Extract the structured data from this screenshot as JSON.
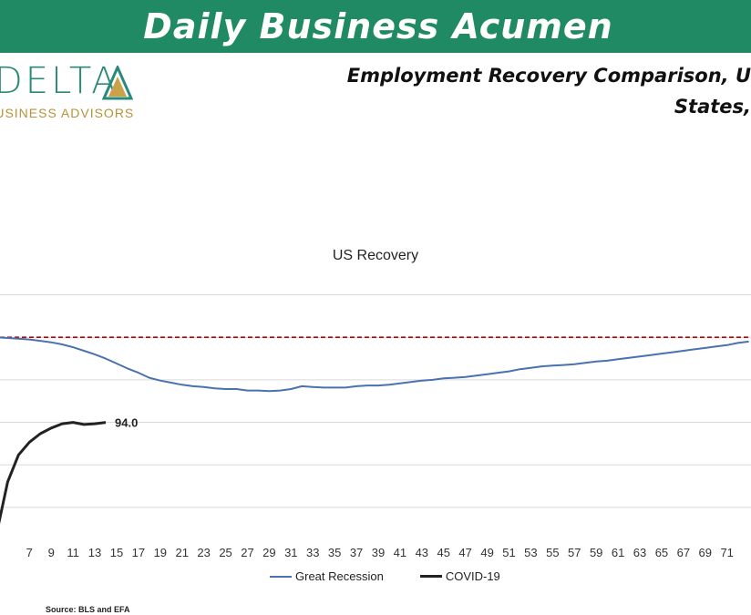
{
  "banner": {
    "title": "Daily Business Acumen"
  },
  "logo": {
    "word": "DELTA",
    "subtitle": "BUSINESS ADVISORS"
  },
  "headline": {
    "line1": "Employment Recovery Comparison, U",
    "line2": "States,"
  },
  "source": "Source: BLS and EFA",
  "colors": {
    "banner": "#1f8a63",
    "great_recession": "#4a72b0",
    "covid": "#222222",
    "reference": "#c00000"
  },
  "chart_data": {
    "type": "line",
    "title": "US Recovery",
    "x_ticks": [
      7,
      9,
      11,
      13,
      15,
      17,
      19,
      21,
      23,
      25,
      27,
      29,
      31,
      33,
      35,
      37,
      39,
      41,
      43,
      45,
      47,
      49,
      51,
      53,
      55,
      57,
      59,
      61,
      63,
      65,
      67,
      69,
      71
    ],
    "xlim": [
      4.3,
      73.2
    ],
    "ylim": [
      86,
      104
    ],
    "y_gridlines": [
      88,
      91,
      94,
      97,
      100,
      103
    ],
    "reference_line": {
      "y": 100,
      "style": "dashed"
    },
    "series": [
      {
        "name": "Great Recession",
        "x": [
          4,
          5,
          6,
          7,
          8,
          9,
          10,
          11,
          12,
          13,
          14,
          15,
          16,
          17,
          18,
          19,
          20,
          21,
          22,
          23,
          24,
          25,
          26,
          27,
          28,
          29,
          30,
          31,
          32,
          33,
          34,
          35,
          36,
          37,
          38,
          39,
          40,
          41,
          42,
          43,
          44,
          45,
          46,
          47,
          48,
          49,
          50,
          51,
          52,
          53,
          54,
          55,
          56,
          57,
          58,
          59,
          60,
          61,
          62,
          63,
          64,
          65,
          66,
          67,
          68,
          69,
          70,
          71,
          72,
          73
        ],
        "values": [
          100.0,
          99.95,
          99.9,
          99.85,
          99.75,
          99.65,
          99.5,
          99.3,
          99.05,
          98.8,
          98.5,
          98.15,
          97.8,
          97.5,
          97.15,
          96.95,
          96.8,
          96.65,
          96.55,
          96.5,
          96.4,
          96.35,
          96.35,
          96.25,
          96.25,
          96.2,
          96.25,
          96.35,
          96.55,
          96.5,
          96.45,
          96.45,
          96.45,
          96.55,
          96.6,
          96.6,
          96.65,
          96.75,
          96.85,
          96.95,
          97.0,
          97.1,
          97.15,
          97.2,
          97.3,
          97.4,
          97.5,
          97.6,
          97.75,
          97.85,
          97.95,
          98.0,
          98.05,
          98.1,
          98.2,
          98.3,
          98.35,
          98.45,
          98.55,
          98.65,
          98.75,
          98.85,
          98.95,
          99.05,
          99.15,
          99.25,
          99.35,
          99.45,
          99.6,
          99.7
        ]
      },
      {
        "name": "COVID-19",
        "x": [
          4,
          5,
          6,
          7,
          8,
          9,
          10,
          11,
          12,
          13,
          14
        ],
        "values": [
          86.2,
          89.8,
          91.7,
          92.6,
          93.2,
          93.6,
          93.9,
          94.0,
          93.85,
          93.9,
          94.0
        ],
        "end_label": "94.0"
      }
    ]
  }
}
